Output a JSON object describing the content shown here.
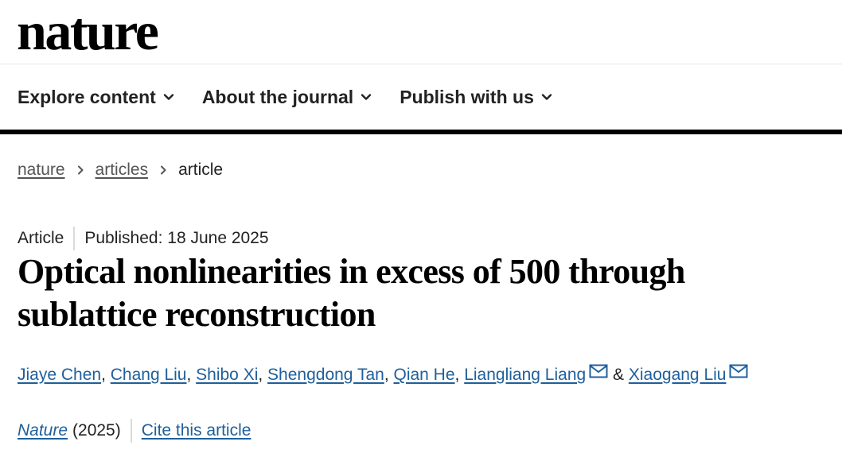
{
  "site": {
    "logo": "nature"
  },
  "nav": {
    "items": [
      {
        "label": "Explore content"
      },
      {
        "label": "About the journal"
      },
      {
        "label": "Publish with us"
      }
    ]
  },
  "breadcrumb": {
    "items": [
      "nature",
      "articles",
      "article"
    ]
  },
  "article": {
    "type": "Article",
    "published": "Published: 18 June 2025",
    "title": "Optical nonlinearities in excess of 500 through sublattice reconstruction",
    "authors": [
      {
        "name": "Jiaye Chen",
        "sep": ", "
      },
      {
        "name": "Chang Liu",
        "sep": ", "
      },
      {
        "name": "Shibo Xi",
        "sep": ", "
      },
      {
        "name": "Shengdong Tan",
        "sep": ", "
      },
      {
        "name": "Qian He",
        "sep": ", "
      },
      {
        "name": "Liangliang Liang",
        "sep": " & ",
        "corresponding": true
      },
      {
        "name": "Xiaogang Liu",
        "sep": "",
        "corresponding": true
      }
    ],
    "journal": "Nature",
    "year": "(2025)",
    "cite_label": "Cite this article"
  },
  "colors": {
    "link": "#1f5f9b",
    "text": "#222222",
    "nav_border": "#000000"
  },
  "icons": {
    "nav_dropdown": "chevron-down-icon",
    "breadcrumb_separator": "chevron-right-icon",
    "corresponding_author": "mail-icon"
  }
}
